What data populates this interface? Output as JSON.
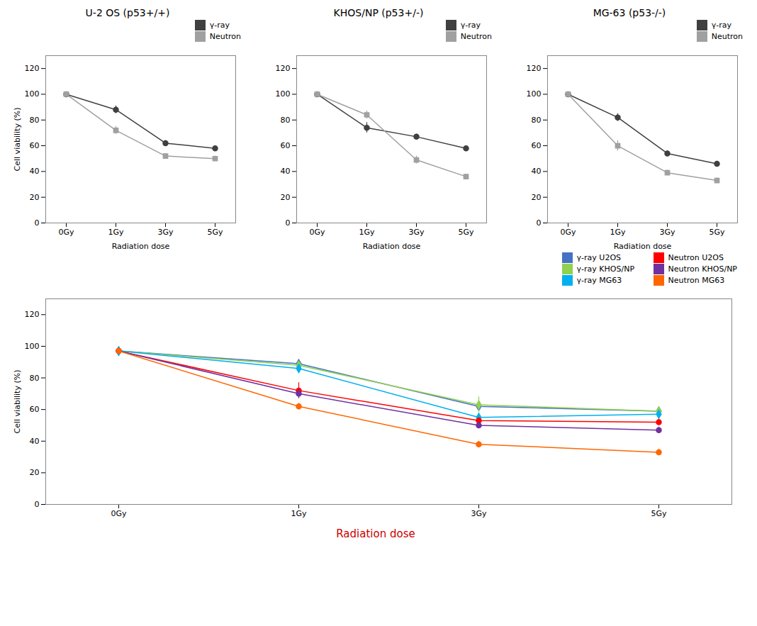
{
  "chart_data": [
    {
      "type": "line",
      "title": "U-2 OS (p53+/+)",
      "xlabel": "Radiation dose",
      "ylabel": "Cell viability (%)",
      "categories": [
        "0Gy",
        "1Gy",
        "3Gy",
        "5Gy"
      ],
      "ylim": [
        0,
        130
      ],
      "yticks": [
        0,
        20,
        40,
        60,
        80,
        100,
        120
      ],
      "grid": false,
      "legend": "upper right",
      "series": [
        {
          "name": "γ-ray",
          "color": "#404040",
          "marker": "circle",
          "values": [
            100,
            88,
            62,
            58
          ],
          "errors": [
            0.5,
            3,
            2,
            2
          ]
        },
        {
          "name": "Neutron",
          "color": "#A0A0A0",
          "marker": "square",
          "values": [
            100,
            72,
            52,
            50
          ],
          "errors": [
            0.5,
            3,
            2,
            2
          ]
        }
      ]
    },
    {
      "type": "line",
      "title": "KHOS/NP (p53+/-)",
      "xlabel": "Radiation dose",
      "categories": [
        "0Gy",
        "1Gy",
        "3Gy",
        "5Gy"
      ],
      "ylim": [
        0,
        130
      ],
      "yticks": [
        0,
        20,
        40,
        60,
        80,
        100,
        120
      ],
      "grid": false,
      "legend": "upper right",
      "series": [
        {
          "name": "γ-ray",
          "color": "#404040",
          "marker": "circle",
          "values": [
            100,
            74,
            67,
            58
          ],
          "errors": [
            0.5,
            4,
            2,
            2
          ]
        },
        {
          "name": "Neutron",
          "color": "#A0A0A0",
          "marker": "square",
          "values": [
            100,
            84,
            49,
            36
          ],
          "errors": [
            0.5,
            3,
            3,
            2
          ]
        }
      ]
    },
    {
      "type": "line",
      "title": "MG-63 (p53-/-)",
      "xlabel": "Radiation dose",
      "categories": [
        "0Gy",
        "1Gy",
        "3Gy",
        "5Gy"
      ],
      "ylim": [
        0,
        130
      ],
      "yticks": [
        0,
        20,
        40,
        60,
        80,
        100,
        120
      ],
      "grid": false,
      "legend": "upper right",
      "series": [
        {
          "name": "γ-ray",
          "color": "#404040",
          "marker": "circle",
          "values": [
            100,
            82,
            54,
            46
          ],
          "errors": [
            0.5,
            3,
            2,
            2
          ]
        },
        {
          "name": "Neutron",
          "color": "#A0A0A0",
          "marker": "square",
          "values": [
            100,
            60,
            39,
            33
          ],
          "errors": [
            0.5,
            4,
            2,
            2
          ]
        }
      ]
    },
    {
      "type": "line",
      "ylabel": "Cell viability (%)",
      "categories": [
        "0Gy",
        "1Gy",
        "3Gy",
        "5Gy"
      ],
      "ylim": [
        0,
        130
      ],
      "yticks": [
        0,
        20,
        40,
        60,
        80,
        100,
        120
      ],
      "grid": false,
      "legend": "upper right",
      "annotations": [
        {
          "text": "Radiation dose",
          "color": "#cc0000"
        }
      ],
      "series": [
        {
          "name": "γ-ray U2OS",
          "color": "#4472C4",
          "marker": "diamond",
          "values": [
            97,
            89,
            62,
            59
          ],
          "errors": [
            0.5,
            2,
            2,
            2
          ]
        },
        {
          "name": "γ-ray KHOS/NP",
          "color": "#92D050",
          "marker": "diamond",
          "values": [
            97,
            88,
            63,
            59
          ],
          "errors": [
            0.5,
            2,
            5,
            2
          ]
        },
        {
          "name": "γ-ray MG63",
          "color": "#00B0F0",
          "marker": "diamond",
          "values": [
            97,
            86,
            55,
            57
          ],
          "errors": [
            0.5,
            2,
            2,
            2
          ]
        },
        {
          "name": "Neutron U2OS",
          "color": "#FF0000",
          "marker": "circle",
          "values": [
            97,
            72,
            53,
            52
          ],
          "errors": [
            0.5,
            5,
            2,
            2
          ]
        },
        {
          "name": "Neutron KHOS/NP",
          "color": "#7030A0",
          "marker": "circle",
          "values": [
            97,
            70,
            50,
            47
          ],
          "errors": [
            0.5,
            3,
            2,
            2
          ]
        },
        {
          "name": "Neutron MG63",
          "color": "#FF6600",
          "marker": "circle",
          "values": [
            97,
            62,
            38,
            33
          ],
          "errors": [
            0.5,
            2,
            2,
            2
          ]
        }
      ]
    }
  ]
}
